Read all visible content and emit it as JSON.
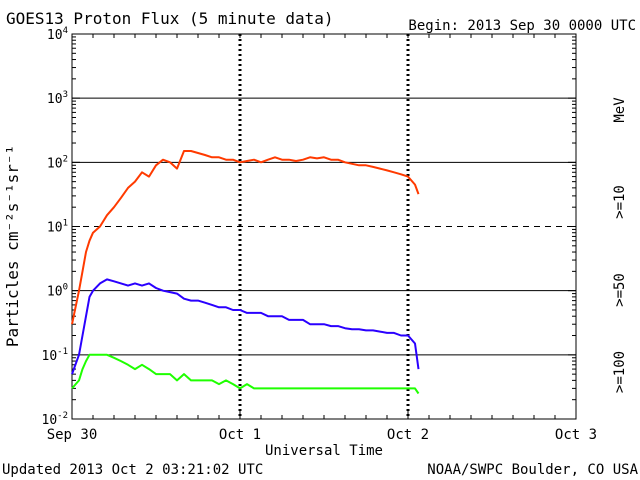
{
  "chart_data": {
    "type": "line",
    "title": "GOES13 Proton Flux (5 minute data)",
    "begin_label": "Begin: 2013 Sep 30 0000 UTC",
    "xlabel": "Universal Time",
    "ylabel": "Particles cm⁻²s⁻¹sr⁻¹",
    "y_scale": "log",
    "ylim": [
      0.01,
      10000
    ],
    "y_ticks": [
      {
        "value": 0.01,
        "base": "10",
        "exp": "-2"
      },
      {
        "value": 0.1,
        "base": "10",
        "exp": "-1"
      },
      {
        "value": 1,
        "base": "10",
        "exp": "0"
      },
      {
        "value": 10,
        "base": "10",
        "exp": "1"
      },
      {
        "value": 100,
        "base": "10",
        "exp": "2"
      },
      {
        "value": 1000,
        "base": "10",
        "exp": "3"
      },
      {
        "value": 10000,
        "base": "10",
        "exp": "4"
      }
    ],
    "xlim_hours": [
      0,
      72
    ],
    "x_ticks": [
      {
        "hour": 0,
        "label": "Sep 30"
      },
      {
        "hour": 24,
        "label": "Oct 1"
      },
      {
        "hour": 48,
        "label": "Oct 2"
      },
      {
        "hour": 72,
        "label": "Oct 3"
      }
    ],
    "threshold_lines": [
      10
    ],
    "grid_lines": [
      0.1,
      1,
      100,
      1000
    ],
    "series": [
      {
        "name": ">=10 MeV",
        "color": "#ff3a00",
        "x": [
          0,
          1,
          1.5,
          2,
          2.5,
          3,
          4,
          5,
          6,
          7,
          8,
          9,
          10,
          11,
          12,
          13,
          14,
          15,
          16,
          17,
          18,
          19,
          20,
          21,
          22,
          23,
          24,
          25,
          26,
          27,
          28,
          29,
          30,
          31,
          32,
          33,
          34,
          35,
          36,
          37,
          38,
          39,
          40,
          41,
          42,
          43,
          44,
          45,
          46,
          47,
          48,
          49,
          49.5
        ],
        "values": [
          0.3,
          1,
          2,
          4,
          6,
          8,
          10,
          15,
          20,
          28,
          40,
          50,
          70,
          60,
          90,
          110,
          100,
          80,
          150,
          150,
          140,
          130,
          120,
          120,
          110,
          110,
          100,
          105,
          110,
          100,
          110,
          120,
          110,
          110,
          105,
          110,
          120,
          115,
          120,
          110,
          110,
          100,
          95,
          90,
          90,
          85,
          80,
          75,
          70,
          65,
          60,
          45,
          32
        ]
      },
      {
        "name": ">=50 MeV",
        "color": "#2a00ff",
        "x": [
          0,
          1,
          1.5,
          2,
          2.5,
          3,
          4,
          5,
          6,
          7,
          8,
          9,
          10,
          11,
          12,
          13,
          14,
          15,
          16,
          17,
          18,
          19,
          20,
          21,
          22,
          23,
          24,
          25,
          26,
          27,
          28,
          29,
          30,
          31,
          32,
          33,
          34,
          35,
          36,
          37,
          38,
          39,
          40,
          41,
          42,
          43,
          44,
          45,
          46,
          47,
          48,
          49,
          49.5
        ],
        "values": [
          0.05,
          0.1,
          0.2,
          0.4,
          0.8,
          1.0,
          1.3,
          1.5,
          1.4,
          1.3,
          1.2,
          1.3,
          1.2,
          1.3,
          1.1,
          1.0,
          0.95,
          0.9,
          0.75,
          0.7,
          0.7,
          0.65,
          0.6,
          0.55,
          0.55,
          0.5,
          0.5,
          0.45,
          0.45,
          0.45,
          0.4,
          0.4,
          0.4,
          0.35,
          0.35,
          0.35,
          0.3,
          0.3,
          0.3,
          0.28,
          0.28,
          0.26,
          0.25,
          0.25,
          0.24,
          0.24,
          0.23,
          0.22,
          0.22,
          0.2,
          0.2,
          0.15,
          0.06
        ]
      },
      {
        "name": ">=100 MeV",
        "color": "#1fff00",
        "x": [
          0,
          1,
          1.5,
          2,
          2.5,
          3,
          4,
          5,
          6,
          7,
          8,
          9,
          10,
          11,
          12,
          13,
          14,
          15,
          16,
          17,
          18,
          19,
          20,
          21,
          22,
          23,
          24,
          25,
          26,
          27,
          28,
          29,
          30,
          31,
          32,
          33,
          34,
          35,
          36,
          37,
          38,
          39,
          40,
          41,
          42,
          43,
          44,
          45,
          46,
          47,
          48,
          49,
          49.5
        ],
        "values": [
          0.03,
          0.04,
          0.06,
          0.08,
          0.1,
          0.1,
          0.1,
          0.1,
          0.09,
          0.08,
          0.07,
          0.06,
          0.07,
          0.06,
          0.05,
          0.05,
          0.05,
          0.04,
          0.05,
          0.04,
          0.04,
          0.04,
          0.04,
          0.035,
          0.04,
          0.035,
          0.03,
          0.035,
          0.03,
          0.03,
          0.03,
          0.03,
          0.03,
          0.03,
          0.03,
          0.03,
          0.03,
          0.03,
          0.03,
          0.03,
          0.03,
          0.03,
          0.03,
          0.03,
          0.03,
          0.03,
          0.03,
          0.03,
          0.03,
          0.03,
          0.03,
          0.03,
          0.025
        ]
      }
    ],
    "legend": [
      {
        "label": "MeV",
        "color": "#000000"
      },
      {
        "label": ">=10",
        "color": "#ff3a00"
      },
      {
        "label": ">=50",
        "color": "#2a00ff"
      },
      {
        "label": ">=100",
        "color": "#1fff00"
      }
    ],
    "footer_left": "Updated 2013 Oct  2 03:21:02 UTC",
    "footer_right": "NOAA/SWPC Boulder, CO USA"
  }
}
